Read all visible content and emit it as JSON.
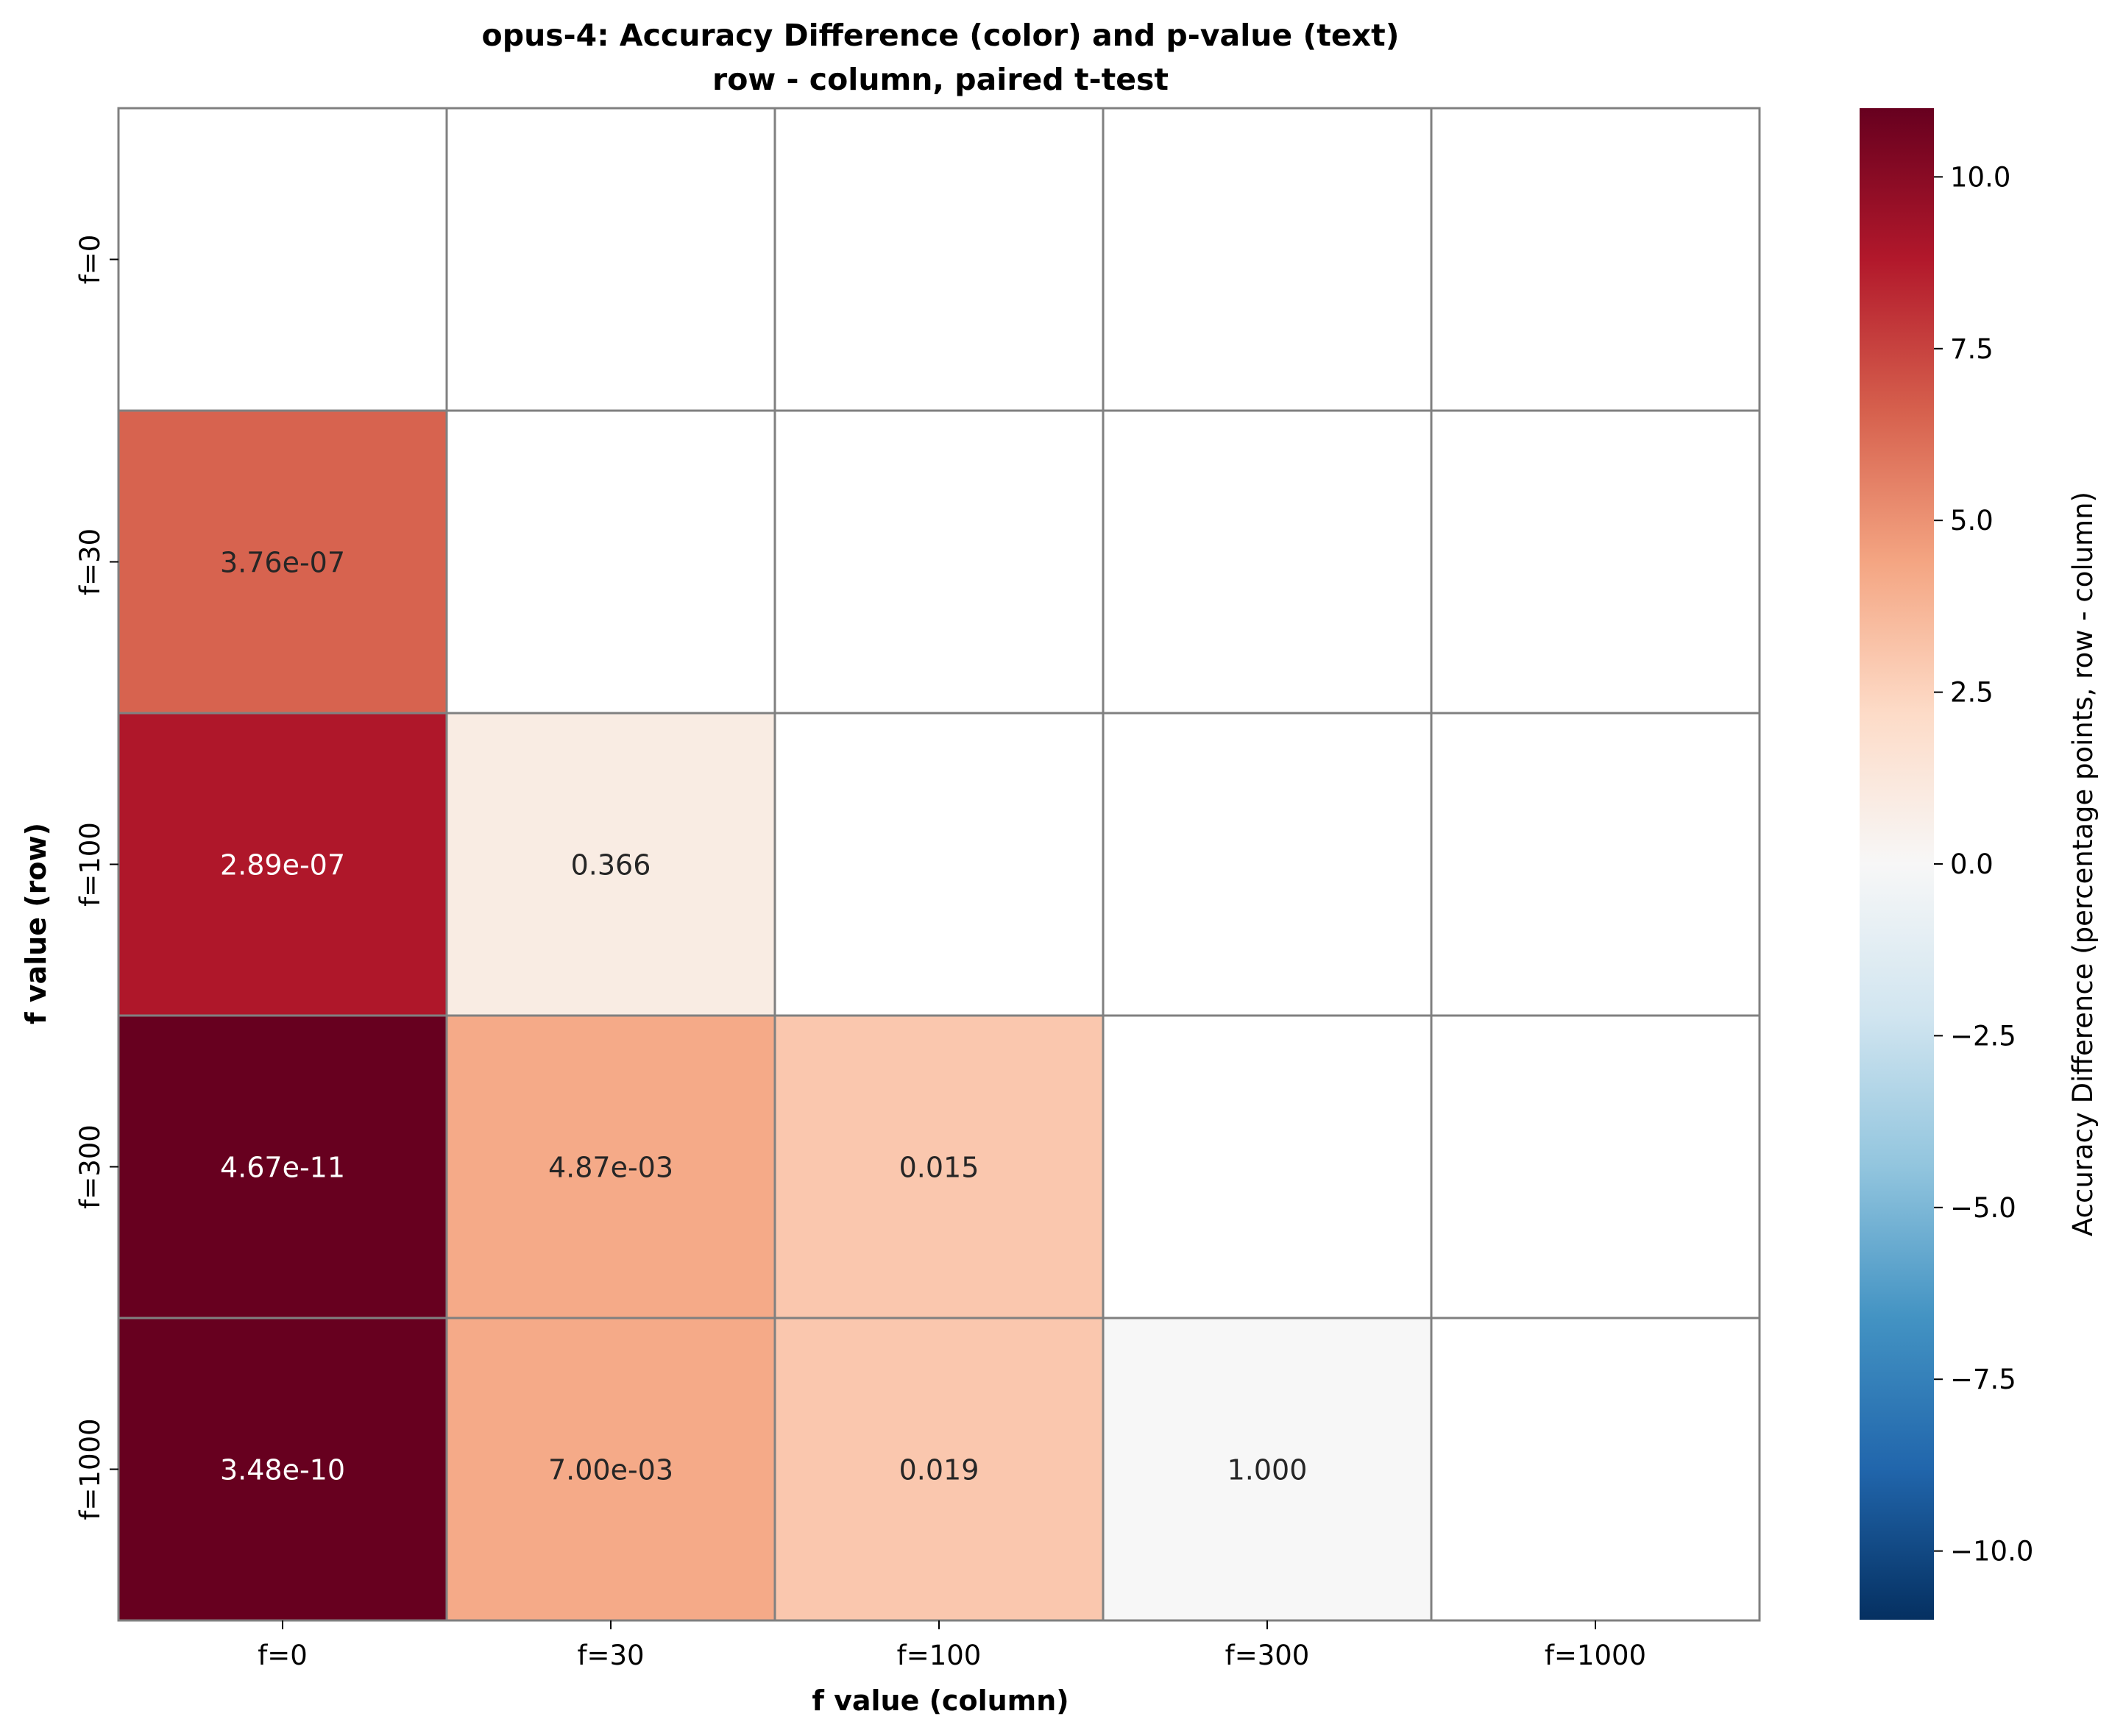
{
  "chart_data": {
    "type": "heatmap",
    "title_line1": "opus-4: Accuracy Difference (color) and p-value (text)",
    "title_line2": "row - column, paired t-test",
    "xlabel": "f value (column)",
    "ylabel": "f value (row)",
    "row_labels": [
      "f=0",
      "f=30",
      "f=100",
      "f=300",
      "f=1000"
    ],
    "col_labels": [
      "f=0",
      "f=30",
      "f=100",
      "f=300",
      "f=1000"
    ],
    "diff_values": [
      [
        null,
        null,
        null,
        null,
        null
      ],
      [
        6.5,
        null,
        null,
        null,
        null
      ],
      [
        8.9,
        0.9,
        null,
        null,
        null
      ],
      [
        11.0,
        4.2,
        3.0,
        null,
        null
      ],
      [
        11.0,
        4.2,
        3.0,
        0.0,
        null
      ]
    ],
    "p_value_text": [
      [
        null,
        null,
        null,
        null,
        null
      ],
      [
        "3.76e-07",
        null,
        null,
        null,
        null
      ],
      [
        "2.89e-07",
        "0.366",
        null,
        null,
        null
      ],
      [
        "4.67e-11",
        "4.87e-03",
        "0.015",
        null,
        null
      ],
      [
        "3.48e-10",
        "7.00e-03",
        "0.019",
        "1.000",
        null
      ]
    ],
    "colorbar": {
      "label": "Accuracy Difference (percentage points, row - column)",
      "colormap": "RdBu_r",
      "vmin": -11.0,
      "vmax": 11.0,
      "ticks": [
        10.0,
        7.5,
        5.0,
        2.5,
        0.0,
        -2.5,
        -5.0,
        -7.5,
        -10.0
      ],
      "tick_labels": [
        "10.0",
        "7.5",
        "5.0",
        "2.5",
        "0.0",
        "−2.5",
        "−5.0",
        "−7.5",
        "−10.0"
      ]
    },
    "grid": true,
    "grid_color": "#808080",
    "text_color_dark": "#262626",
    "text_color_light": "#ffffff"
  }
}
